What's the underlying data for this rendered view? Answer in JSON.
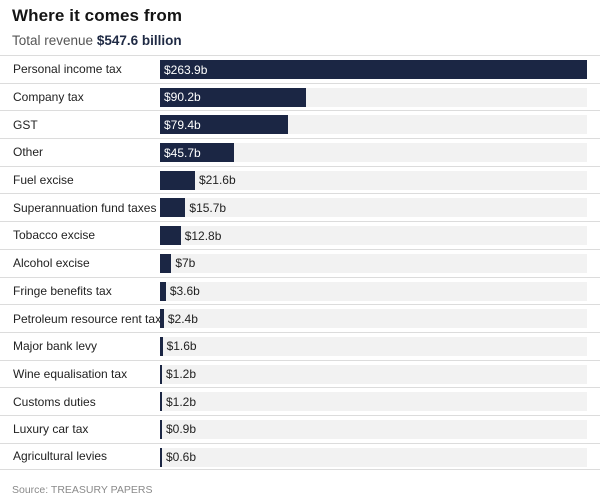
{
  "header": {
    "title": "Where it comes from",
    "subtitle_prefix": "Total revenue",
    "subtitle_total": "$547.6 billion"
  },
  "source": "Source: TREASURY PAPERS",
  "colors": {
    "bar": "#1b2644",
    "track": "#f2f2f2"
  },
  "chart_data": {
    "type": "bar",
    "orientation": "horizontal",
    "title": "Where it comes from",
    "subtitle": "Total revenue $547.6 billion",
    "categories": [
      "Personal income tax",
      "Company tax",
      "GST",
      "Other",
      "Fuel excise",
      "Superannuation fund taxes",
      "Tobacco excise",
      "Alcohol excise",
      "Fringe benefits tax",
      "Petroleum resource rent tax",
      "Major bank levy",
      "Wine equalisation tax",
      "Customs duties",
      "Luxury car tax",
      "Agricultural levies"
    ],
    "values": [
      263.9,
      90.2,
      79.4,
      45.7,
      21.6,
      15.7,
      12.8,
      7,
      3.6,
      2.4,
      1.6,
      1.2,
      1.2,
      0.9,
      0.6
    ],
    "value_labels": [
      "$263.9b",
      "$90.2b",
      "$79.4b",
      "$45.7b",
      "$21.6b",
      "$15.7b",
      "$12.8b",
      "$7b",
      "$3.6b",
      "$2.4b",
      "$1.6b",
      "$1.2b",
      "$1.2b",
      "$0.9b",
      "$0.6b"
    ],
    "xlim": [
      0,
      263.9
    ],
    "grid": false,
    "legend": false
  }
}
